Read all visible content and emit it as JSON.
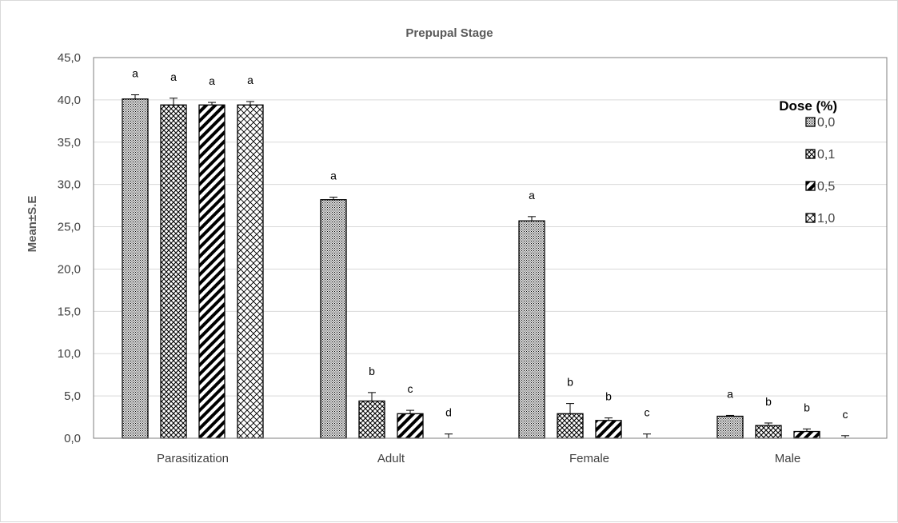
{
  "chart_data": {
    "type": "bar",
    "title": "Prepupal Stage",
    "ylabel": "Mean±S.E",
    "xlabel": "",
    "ylim": [
      0,
      45
    ],
    "yticks": [
      "0,0",
      "5,0",
      "10,0",
      "15,0",
      "20,0",
      "25,0",
      "30,0",
      "35,0",
      "40,0",
      "45,0"
    ],
    "categories": [
      "Parasitization",
      "Adult",
      "Female",
      "Male"
    ],
    "legend_title": "Dose (%)",
    "legend_position": "top-right",
    "grid": true,
    "series": [
      {
        "name": "0,0",
        "pattern": "dense-dots",
        "values": [
          40.1,
          28.2,
          25.7,
          2.6
        ],
        "errors": [
          0.5,
          0.3,
          0.5,
          0.1
        ],
        "letters": [
          "a",
          "a",
          "a",
          "a"
        ]
      },
      {
        "name": "0,1",
        "pattern": "crosshatch",
        "values": [
          39.4,
          4.4,
          2.9,
          1.5
        ],
        "errors": [
          0.8,
          1.0,
          1.2,
          0.3
        ],
        "letters": [
          "a",
          "b",
          "b",
          "b"
        ]
      },
      {
        "name": "0,5",
        "pattern": "diagonal-stripes",
        "values": [
          39.4,
          2.9,
          2.1,
          0.8
        ],
        "errors": [
          0.3,
          0.4,
          0.3,
          0.3
        ],
        "letters": [
          "a",
          "c",
          "b",
          "b"
        ]
      },
      {
        "name": "1,0",
        "pattern": "diamond-lattice",
        "values": [
          39.4,
          0.0,
          0.0,
          0.0
        ],
        "errors": [
          0.4,
          0.5,
          0.5,
          0.3
        ],
        "letters": [
          "a",
          "d",
          "c",
          "c"
        ]
      }
    ]
  }
}
